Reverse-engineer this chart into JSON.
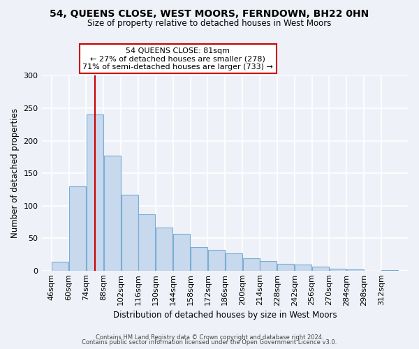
{
  "title": "54, QUEENS CLOSE, WEST MOORS, FERNDOWN, BH22 0HN",
  "subtitle": "Size of property relative to detached houses in West Moors",
  "xlabel": "Distribution of detached houses by size in West Moors",
  "ylabel": "Number of detached properties",
  "bar_color": "#c8d8ed",
  "bar_edge_color": "#7aadd4",
  "vline_color": "#cc0000",
  "vline_x": 81,
  "annotation_title": "54 QUEENS CLOSE: 81sqm",
  "annotation_line1": "← 27% of detached houses are smaller (278)",
  "annotation_line2": "71% of semi-detached houses are larger (733) →",
  "annotation_box_color": "white",
  "annotation_box_edge": "#cc0000",
  "bins": [
    46,
    60,
    74,
    88,
    102,
    116,
    130,
    144,
    158,
    172,
    186,
    200,
    214,
    228,
    242,
    256,
    270,
    284,
    298,
    312,
    326
  ],
  "counts": [
    13,
    130,
    240,
    177,
    117,
    87,
    66,
    56,
    36,
    32,
    26,
    19,
    15,
    10,
    9,
    6,
    3,
    2,
    0,
    1
  ],
  "ylim": [
    0,
    300
  ],
  "yticks": [
    0,
    50,
    100,
    150,
    200,
    250,
    300
  ],
  "footer1": "Contains HM Land Registry data © Crown copyright and database right 2024.",
  "footer2": "Contains public sector information licensed under the Open Government Licence v3.0.",
  "background_color": "#eef2f8",
  "grid_color": "white"
}
